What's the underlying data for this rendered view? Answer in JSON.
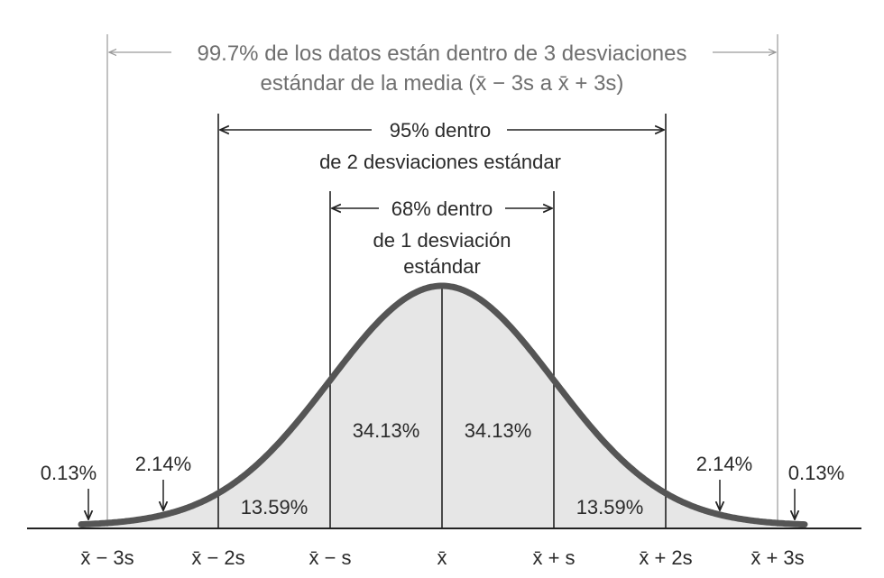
{
  "colors": {
    "curve": "#555555",
    "fill": "#e6e6e6",
    "line_dark": "#222222",
    "line_grey": "#9a9a9a",
    "text_grey": "#6f6f6f"
  },
  "brackets": {
    "three_sd": {
      "line1": "99.7% de los datos están dentro de 3 desviaciones",
      "line2": "estándar de la media (x̄ − 3s a x̄ + 3s)"
    },
    "two_sd": {
      "line1": "95% dentro",
      "line2": "de 2 desviaciones estándar"
    },
    "one_sd": {
      "line1": "68% dentro",
      "line2": "de 1 desviación",
      "line3": "estándar"
    }
  },
  "regions": [
    {
      "key": "left_tail",
      "label": "0.13%"
    },
    {
      "key": "left_2to3",
      "label": "2.14%"
    },
    {
      "key": "left_1to2",
      "label": "13.59%"
    },
    {
      "key": "left_0to1",
      "label": "34.13%"
    },
    {
      "key": "right_0to1",
      "label": "34.13%"
    },
    {
      "key": "right_1to2",
      "label": "13.59%"
    },
    {
      "key": "right_2to3",
      "label": "2.14%"
    },
    {
      "key": "right_tail",
      "label": "0.13%"
    }
  ],
  "ticks": [
    "x̄ − 3s",
    "x̄ − 2s",
    "x̄ − s",
    "x̄",
    "x̄ + s",
    "x̄ + 2s",
    "x̄ + 3s"
  ]
}
